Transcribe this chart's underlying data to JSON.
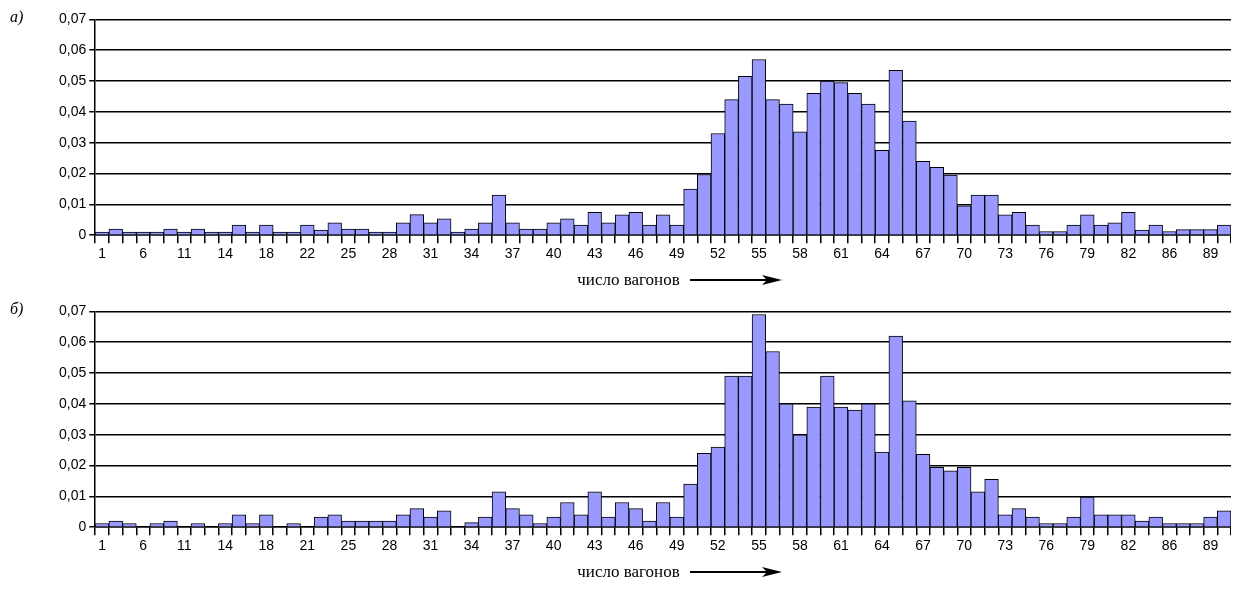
{
  "chart_data": [
    {
      "type": "bar",
      "title": "а)",
      "xlabel": "число вагонов",
      "color": "#9999ff",
      "grid": "y",
      "ylim": [
        0,
        0.07
      ],
      "yticks": [
        0,
        {
          "value": 0.01,
          "label": "0,01"
        },
        {
          "value": 0.02,
          "label": "0,02"
        },
        {
          "value": 0.03,
          "label": "0,03"
        },
        {
          "value": 0.04,
          "label": "0,04"
        },
        {
          "value": 0.05,
          "label": "0,05"
        },
        {
          "value": 0.06,
          "label": "0,06"
        },
        {
          "value": 0.07,
          "label": "0,07"
        }
      ],
      "categories": [
        "1",
        null,
        null,
        "6",
        null,
        null,
        "11",
        null,
        null,
        "14",
        null,
        null,
        "18",
        null,
        null,
        "22",
        null,
        null,
        "25",
        null,
        null,
        "28",
        null,
        null,
        "31",
        null,
        null,
        "34",
        null,
        null,
        "37",
        null,
        null,
        "40",
        null,
        null,
        "43",
        null,
        null,
        "46",
        null,
        null,
        "49",
        null,
        null,
        "52",
        null,
        null,
        "55",
        null,
        null,
        "58",
        null,
        null,
        "61",
        null,
        null,
        "64",
        null,
        null,
        "67",
        null,
        null,
        "70",
        null,
        null,
        "73",
        null,
        null,
        "76",
        null,
        null,
        "79",
        null,
        null,
        "82",
        null,
        null,
        "86",
        null,
        null,
        "89",
        null
      ],
      "values": [
        0.001,
        0.002,
        0.001,
        0.001,
        0.001,
        0.002,
        0.001,
        0.002,
        0.001,
        0.001,
        0.0033,
        0.001,
        0.0033,
        0.001,
        0.001,
        0.0033,
        0.0017,
        0.004,
        0.002,
        0.002,
        0.001,
        0.001,
        0.004,
        0.0067,
        0.004,
        0.0053,
        0.001,
        0.002,
        0.004,
        0.013,
        0.004,
        0.002,
        0.002,
        0.004,
        0.0053,
        0.0033,
        0.0074,
        0.004,
        0.0066,
        0.0074,
        0.0033,
        0.0066,
        0.0033,
        0.015,
        0.0197,
        0.033,
        0.044,
        0.0515,
        0.057,
        0.044,
        0.0425,
        0.0335,
        0.046,
        0.05,
        0.0495,
        0.046,
        0.0425,
        0.0275,
        0.0535,
        0.037,
        0.024,
        0.022,
        0.0195,
        0.0095,
        0.013,
        0.013,
        0.0066,
        0.0074,
        0.0033,
        0.0012,
        0.0012,
        0.0033,
        0.0066,
        0.0033,
        0.004,
        0.0074,
        0.0017,
        0.0033,
        0.0012,
        0.0018,
        0.0018,
        0.0018,
        0.0033
      ]
    },
    {
      "type": "bar",
      "title": "б)",
      "xlabel": "число вагонов",
      "color": "#9999ff",
      "grid": "y",
      "ylim": [
        0,
        0.07
      ],
      "yticks": [
        0,
        {
          "value": 0.01,
          "label": "0,01"
        },
        {
          "value": 0.02,
          "label": "0,02"
        },
        {
          "value": 0.03,
          "label": "0,03"
        },
        {
          "value": 0.04,
          "label": "0,04"
        },
        {
          "value": 0.05,
          "label": "0,05"
        },
        {
          "value": 0.06,
          "label": "0,06"
        },
        {
          "value": 0.07,
          "label": "0,07"
        }
      ],
      "categories": [
        "1",
        null,
        null,
        "6",
        null,
        null,
        "11",
        null,
        null,
        "14",
        null,
        null,
        "18",
        null,
        null,
        "21",
        null,
        null,
        "25",
        null,
        null,
        "28",
        null,
        null,
        "31",
        null,
        null,
        "34",
        null,
        null,
        "37",
        null,
        null,
        "40",
        null,
        null,
        "43",
        null,
        null,
        "46",
        null,
        null,
        "49",
        null,
        null,
        "52",
        null,
        null,
        "55",
        null,
        null,
        "58",
        null,
        null,
        "61",
        null,
        null,
        "64",
        null,
        null,
        "67",
        null,
        null,
        "70",
        null,
        null,
        "73",
        null,
        null,
        "76",
        null,
        null,
        "79",
        null,
        null,
        "82",
        null,
        null,
        "86",
        null,
        null,
        "89",
        null
      ],
      "values": [
        0.0012,
        0.002,
        0.0012,
        0,
        0.0012,
        0.002,
        0,
        0.0012,
        0,
        0.0012,
        0.004,
        0.0012,
        0.004,
        0,
        0.0012,
        0,
        0.0033,
        0.004,
        0.002,
        0.002,
        0.002,
        0.002,
        0.004,
        0.006,
        0.0033,
        0.0053,
        0,
        0.0015,
        0.0033,
        0.0115,
        0.006,
        0.004,
        0.0012,
        0.0033,
        0.008,
        0.004,
        0.0115,
        0.0033,
        0.008,
        0.006,
        0.002,
        0.008,
        0.0033,
        0.014,
        0.024,
        0.026,
        0.049,
        0.049,
        0.069,
        0.057,
        0.04,
        0.03,
        0.039,
        0.049,
        0.039,
        0.038,
        0.04,
        0.0244,
        0.062,
        0.041,
        0.0236,
        0.0194,
        0.0183,
        0.0194,
        0.0115,
        0.0155,
        0.004,
        0.006,
        0.0033,
        0.0012,
        0.0012,
        0.0033,
        0.0098,
        0.004,
        0.004,
        0.004,
        0.002,
        0.0033,
        0.0012,
        0.0012,
        0.0012,
        0.0033,
        0.0053
      ]
    }
  ]
}
